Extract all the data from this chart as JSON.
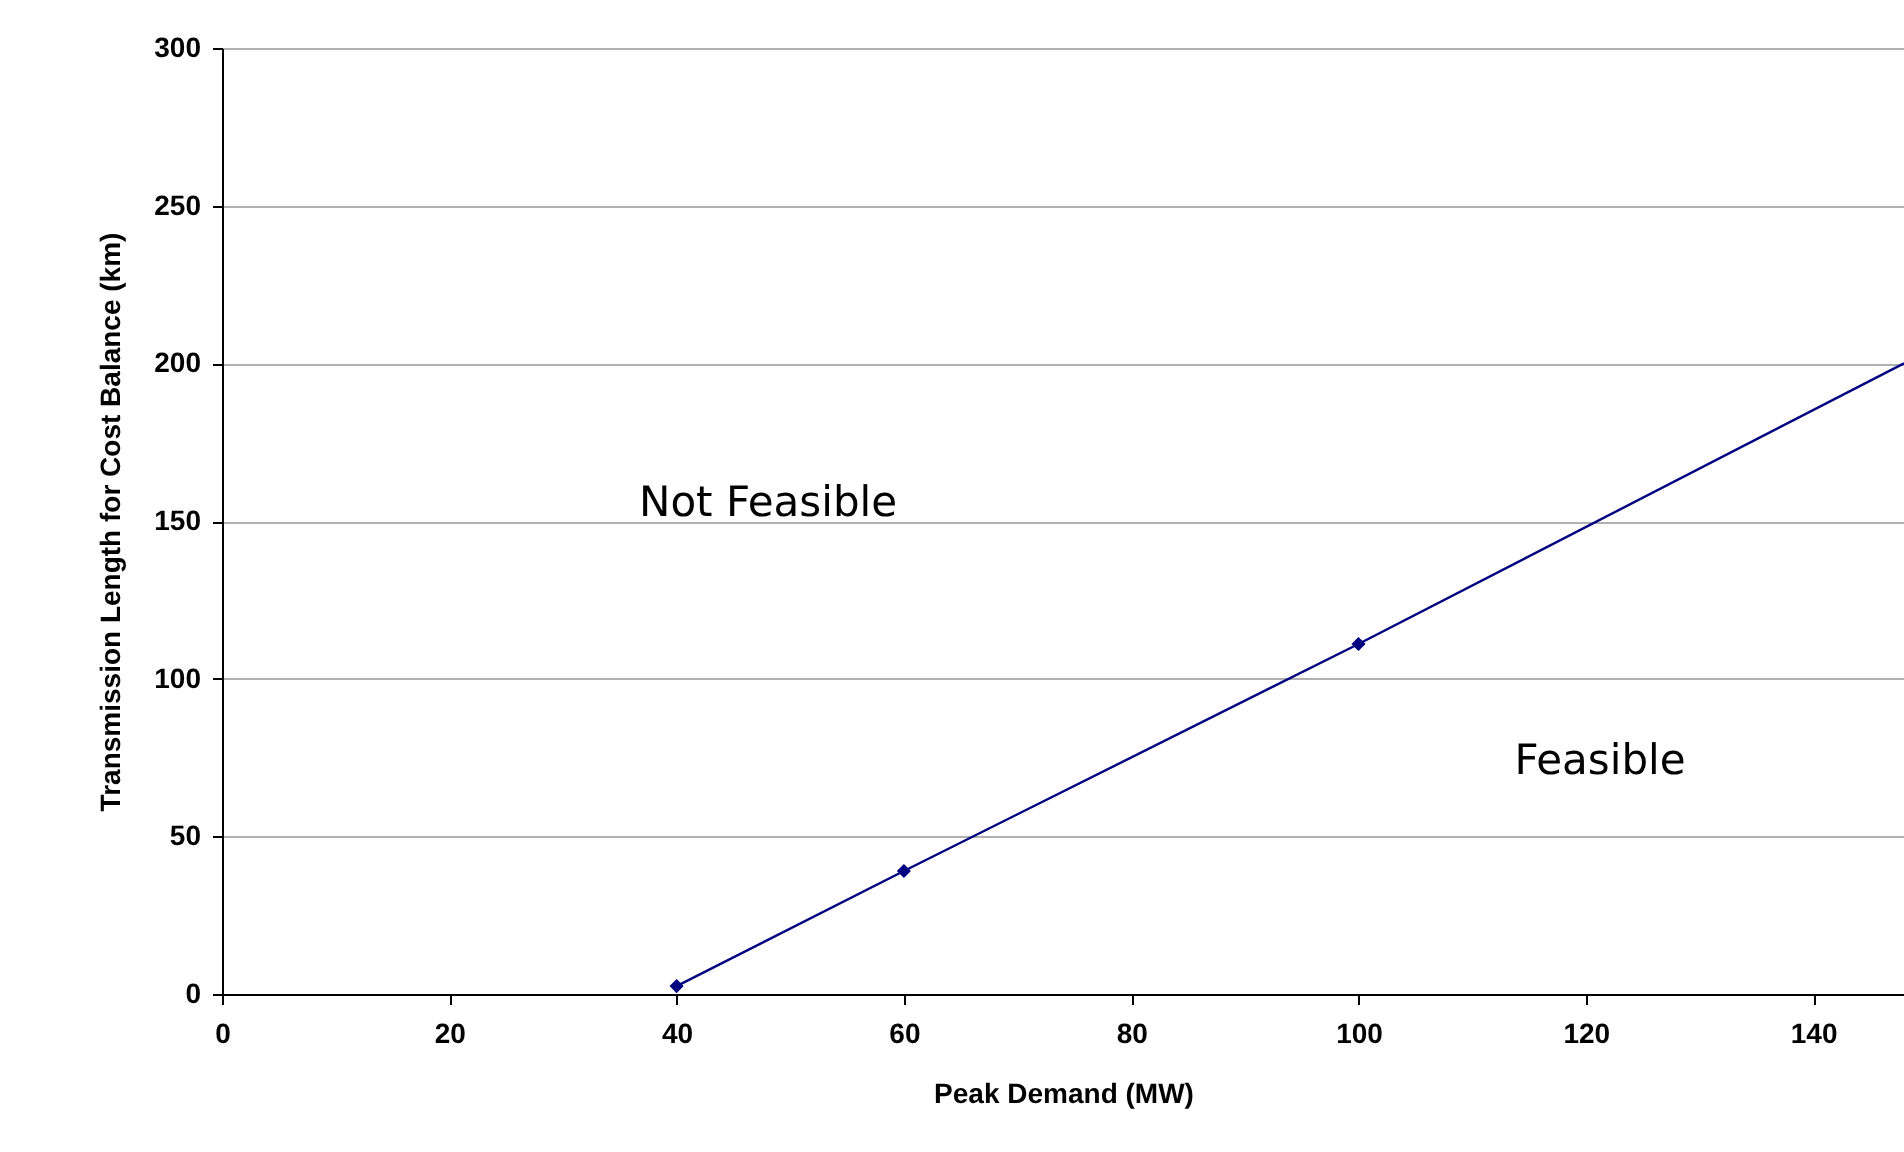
{
  "chart_data": {
    "type": "line",
    "xlabel": "Peak Demand (MW)",
    "ylabel": "Transmission Length for Cost Balance (km)",
    "xlim": [
      0,
      148
    ],
    "xticks": [
      0,
      20,
      40,
      60,
      80,
      100,
      120,
      140
    ],
    "ylim": [
      0,
      300
    ],
    "yticks": [
      0,
      50,
      100,
      150,
      200,
      250,
      300
    ],
    "grid": "y",
    "series": [
      {
        "marker": "diamond",
        "color": "#000080",
        "x": [
          40,
          60,
          100
        ],
        "values": [
          2.5,
          39,
          111
        ]
      },
      {
        "marker": "none",
        "color": "#000080",
        "x": [
          100,
          148
        ],
        "values": [
          111,
          200
        ]
      }
    ],
    "annotations": [
      "Not Feasible",
      "Feasible"
    ]
  }
}
